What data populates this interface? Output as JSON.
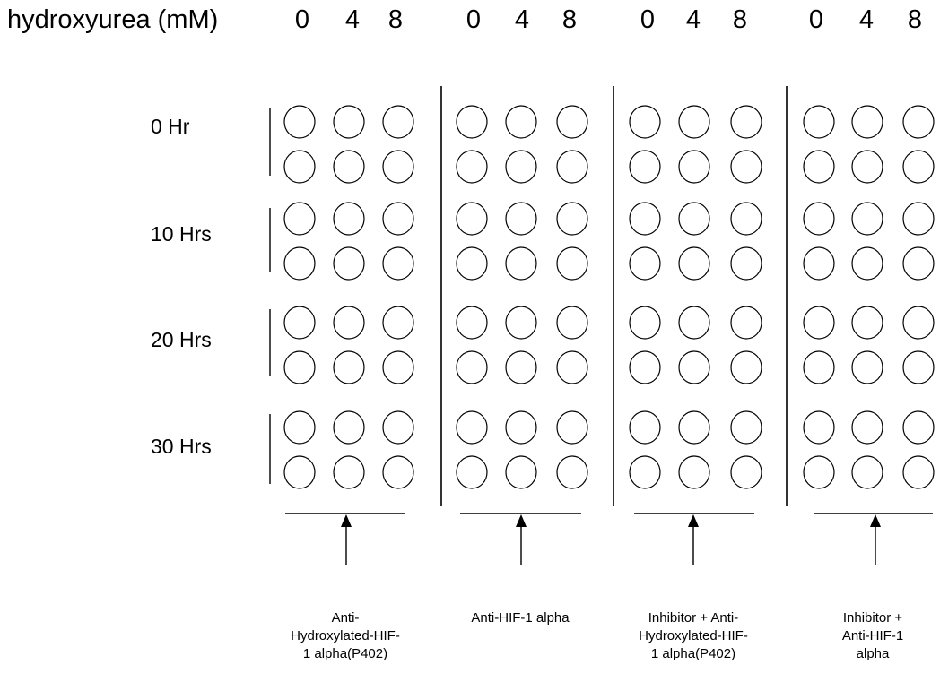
{
  "header": {
    "label": "hydroxyurea (mM)",
    "doses": [
      "0",
      "4",
      "8",
      "0",
      "4",
      "8",
      "0",
      "4",
      "8",
      "0",
      "4",
      "8"
    ]
  },
  "time_points": [
    "0 Hr",
    "10 Hrs",
    "20 Hrs",
    "30 Hrs"
  ],
  "groups": [
    {
      "label": "Anti-\nHydroxylated-HIF-\n1 alpha(P402)"
    },
    {
      "label": "Anti-HIF-1 alpha"
    },
    {
      "label": "Inhibitor + Anti-\nHydroxylated-HIF-\n1 alpha(P402)"
    },
    {
      "label": "Inhibitor +\nAnti-HIF-1\nalpha"
    }
  ],
  "plate": {
    "groups": 4,
    "columns_per_group": 3,
    "rows_per_time_point": 2
  }
}
